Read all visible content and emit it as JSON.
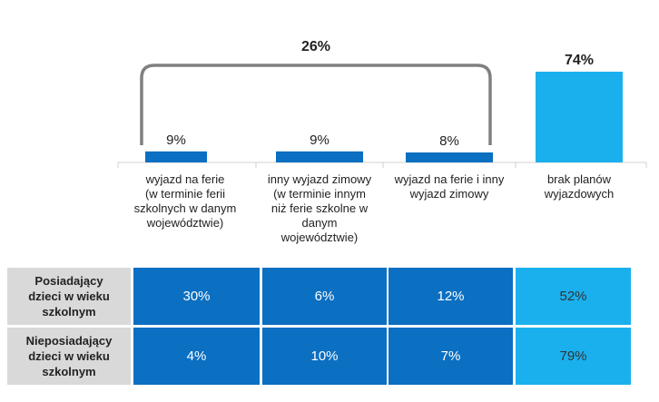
{
  "chart_data": {
    "type": "bar",
    "categories": [
      "wyjazd na ferie\n(w terminie ferii\nszkolnych w danym\nwojewództwie)",
      "inny wyjazd zimowy\n(w terminie innym\nniż ferie szkolne w\ndanym\nwojewództwie)",
      "wyjazd na ferie i inny\nwyjazd zimowy",
      "brak planów\nwyjazdowych"
    ],
    "values": [
      9,
      9,
      8,
      74
    ],
    "value_labels": [
      "9%",
      "9%",
      "8%",
      "74%"
    ],
    "bracket_label": "26%",
    "colors": [
      "#0b6fc2",
      "#0b6fc2",
      "#0b6fc2",
      "#1ab0ee"
    ],
    "ylim": [
      0,
      100
    ]
  },
  "table": {
    "rows": [
      {
        "label": "Posiadający\ndzieci w wieku\nszkolnym",
        "values": [
          "30%",
          "6%",
          "12%",
          "52%"
        ]
      },
      {
        "label": "Nieposiadający\ndzieci w wieku\nszkolnym",
        "values": [
          "4%",
          "10%",
          "7%",
          "79%"
        ]
      }
    ],
    "dark_color": "#0b6fc2",
    "light_color": "#1ab0ee"
  }
}
